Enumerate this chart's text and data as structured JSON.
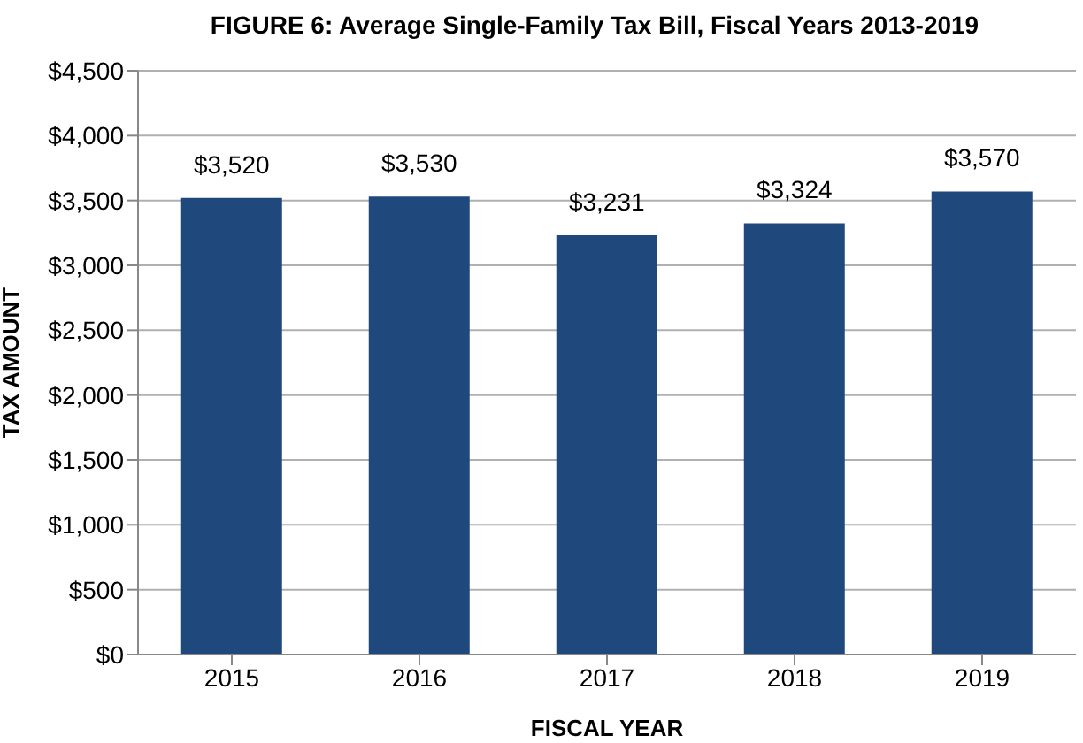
{
  "chart_data": {
    "type": "bar",
    "title": "FIGURE 6: Average Single-Family Tax Bill, Fiscal Years 2013-2019",
    "xlabel": "FISCAL YEAR",
    "ylabel": "TAX AMOUNT",
    "categories": [
      "2015",
      "2016",
      "2017",
      "2018",
      "2019"
    ],
    "values": [
      3520,
      3530,
      3231,
      3324,
      3570
    ],
    "color": "#1f497d",
    "value_labels": [
      "$3,520",
      "$3,530",
      "$3,231",
      "$3,324",
      "$3,570"
    ],
    "ylim": [
      0,
      4500
    ],
    "yticks": [
      {
        "value": 0,
        "label": "$0"
      },
      {
        "value": 500,
        "label": "$500"
      },
      {
        "value": 1000,
        "label": "$1,000"
      },
      {
        "value": 1500,
        "label": "$1,500"
      },
      {
        "value": 2000,
        "label": "$2,000"
      },
      {
        "value": 2500,
        "label": "$2,500"
      },
      {
        "value": 3000,
        "label": "$3,000"
      },
      {
        "value": 3500,
        "label": "$3,500"
      },
      {
        "value": 4000,
        "label": "$4,000"
      },
      {
        "value": 4500,
        "label": "$4,500"
      }
    ],
    "grid": "y",
    "legend": false
  }
}
